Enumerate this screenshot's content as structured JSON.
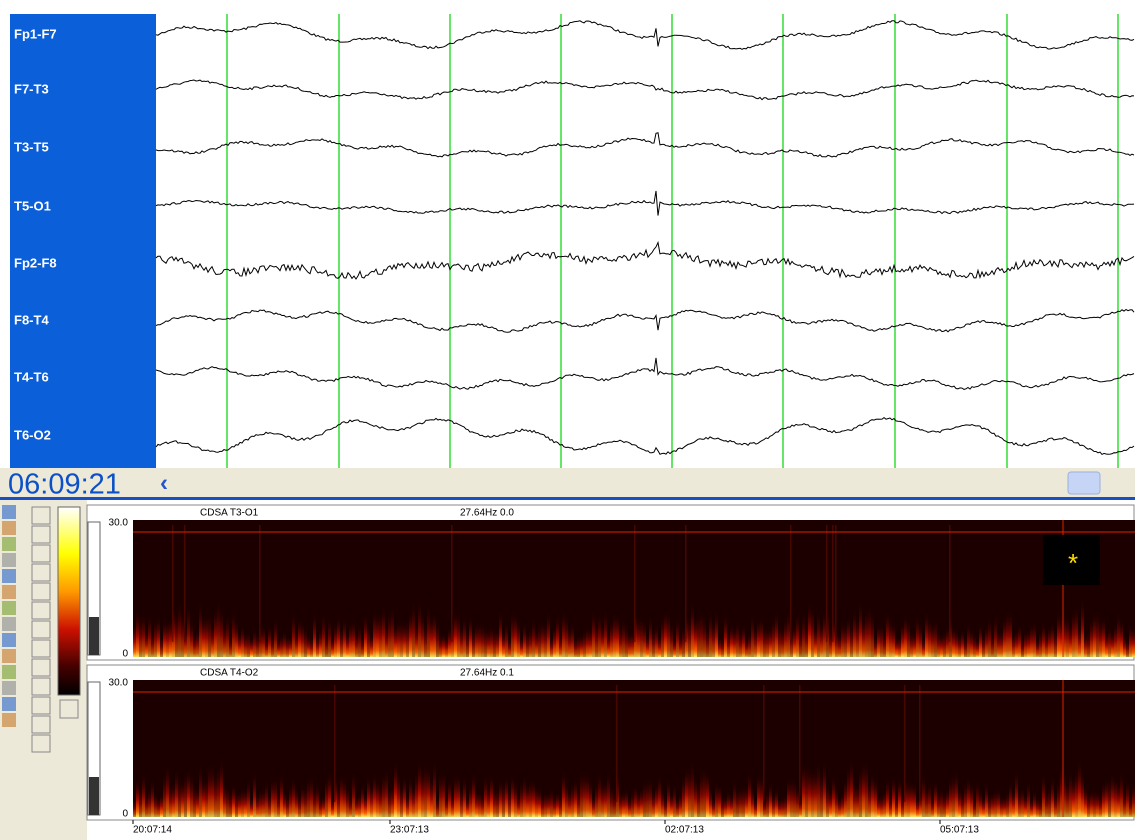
{
  "channels": [
    "Fp1-F7",
    "F7-T3",
    "T3-T5",
    "T5-O1",
    "Fp2-F8",
    "F8-T4",
    "T4-T6",
    "T6-O2"
  ],
  "current_time": "06:09:21",
  "panels": [
    {
      "title": "CDSA T3-O1",
      "readout": "27.64Hz  0.0",
      "y_top": "30.0",
      "y_bottom": "0",
      "marker": "*"
    },
    {
      "title": "CDSA T4-O2",
      "readout": "27.64Hz  0.1",
      "y_top": "30.0",
      "y_bottom": "0"
    }
  ],
  "time_ticks": [
    "20:07:14",
    "23:07:13",
    "02:07:13",
    "05:07:13"
  ]
}
